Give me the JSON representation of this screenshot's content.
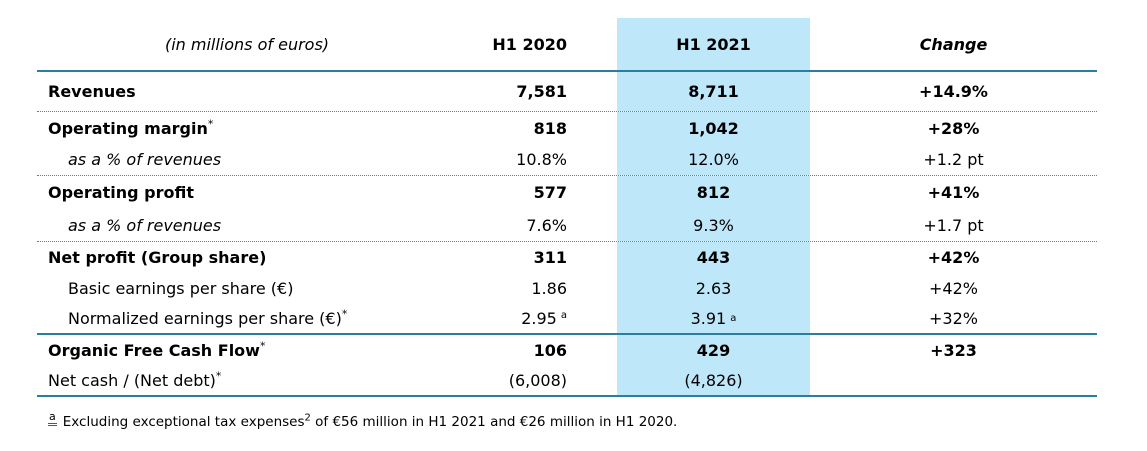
{
  "header": {
    "col_label": "(in millions of euros)",
    "col_2020": "H1 2020",
    "col_2021": "H1 2021",
    "col_change": "Change"
  },
  "rows": [
    {
      "label": "Revenues",
      "h2020": "7,581",
      "h2021": "8,711",
      "change": "+14.9%"
    },
    {
      "label": "Operating margin",
      "label_sup": "*",
      "h2020": "818",
      "h2021": "1,042",
      "change": "+28%"
    },
    {
      "label": "as a % of revenues",
      "h2020": "10.8%",
      "h2021": "12.0%",
      "change": "+1.2 pt"
    },
    {
      "label": "Operating profit",
      "h2020": "577",
      "h2021": "812",
      "change": "+41%"
    },
    {
      "label": "as a % of revenues",
      "h2020": "7.6%",
      "h2021": "9.3%",
      "change": "+1.7 pt"
    },
    {
      "label": "Net profit (Group share)",
      "h2020": "311",
      "h2021": "443",
      "change": "+42%"
    },
    {
      "label": "Basic earnings per share (€)",
      "h2020": "1.86",
      "h2021": "2.63",
      "change": "+42%"
    },
    {
      "label": "Normalized earnings per share (€)",
      "label_sup": "*",
      "h2020": "2.95",
      "h2020_sup": "a",
      "h2021": "3.91",
      "h2021_sup": "a",
      "change": "+32%"
    },
    {
      "label": "Organic Free Cash Flow",
      "label_sup": "*",
      "h2020": "106",
      "h2021": "429",
      "change": "+323"
    },
    {
      "label": "Net cash / (Net debt)",
      "label_sup": "*",
      "h2020": "(6,008)",
      "h2021": "(4,826)",
      "change": ""
    }
  ],
  "footnote": {
    "marker": "a",
    "text_start": "Excluding exceptional tax expenses",
    "sup": "2",
    "text_end": " of €56 million in H1 2021 and €26 million in H1 2020."
  },
  "colors": {
    "highlight_column": "#BEE7FA",
    "line_solid": "#2D7D9E",
    "line_dotted": "#3E89A5",
    "footnote_underline": "#2D59C8"
  }
}
